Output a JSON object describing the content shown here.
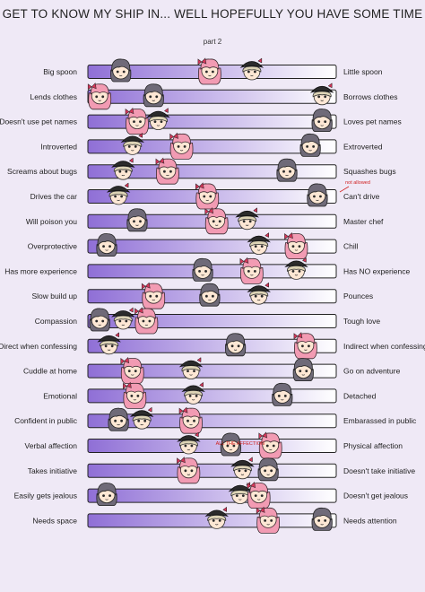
{
  "header": {
    "title": "GET TO KNOW MY SHIP IN... WELL HOPEFULLY YOU HAVE SOME TIME",
    "subtitle": "part 2"
  },
  "colors": {
    "background": "#efe9f6",
    "bar_light": "#ffffff",
    "bar_dark": "#8f6fd6",
    "bar_outline": "#222222",
    "pink_hair": "#f29bb3",
    "gray_hair": "#6f6a78",
    "blonde_hair": "#ddd3b5",
    "black_hat": "#2b2b2b",
    "skin": "#fde7d4",
    "note_red": "#d02020"
  },
  "characters": [
    "pink-haired-character",
    "gray-haired-character",
    "blonde-hat-character"
  ],
  "rows": [
    {
      "left": "Big spoon",
      "right": "Little spoon",
      "placements": {
        "gray": 0.11,
        "pink": 0.49,
        "blonde": 0.67
      }
    },
    {
      "left": "Lends clothes",
      "right": "Borrows clothes",
      "placements": {
        "pink": 0.02,
        "gray": 0.25,
        "blonde": 0.97
      }
    },
    {
      "left": "Doesn't use pet names",
      "right": "Loves pet names",
      "placements": {
        "pink": 0.18,
        "blonde": 0.27,
        "gray": 0.97
      }
    },
    {
      "left": "Introverted",
      "right": "Extroverted",
      "placements": {
        "blonde": 0.16,
        "pink": 0.37,
        "gray": 0.92
      }
    },
    {
      "left": "Screams about bugs",
      "right": "Squashes bugs",
      "placements": {
        "blonde": 0.12,
        "pink": 0.31,
        "gray": 0.82
      }
    },
    {
      "left": "Drives the car",
      "right": "Can't drive",
      "placements": {
        "blonde": 0.1,
        "pink": 0.48,
        "gray": 0.95
      },
      "note": "not allowed"
    },
    {
      "left": "Will poison you",
      "right": "Master chef",
      "placements": {
        "gray": 0.18,
        "pink": 0.52,
        "blonde": 0.65
      }
    },
    {
      "left": "Overprotective",
      "right": "Chill",
      "placements": {
        "gray": 0.05,
        "blonde": 0.7,
        "pink": 0.86
      }
    },
    {
      "left": "Has more experience",
      "right": "Has NO experience",
      "placements": {
        "gray": 0.46,
        "pink": 0.67,
        "blonde": 0.86
      }
    },
    {
      "left": "Slow build up",
      "right": "Pounces",
      "placements": {
        "pink": 0.25,
        "gray": 0.49,
        "blonde": 0.7
      }
    },
    {
      "left": "Compassion",
      "right": "Tough love",
      "placements": {
        "gray": 0.02,
        "blonde": 0.12,
        "pink": 0.22
      }
    },
    {
      "left": "Direct when confessing",
      "right": "Indirect when confessing",
      "placements": {
        "blonde": 0.06,
        "gray": 0.6,
        "pink": 0.9
      }
    },
    {
      "left": "Cuddle at home",
      "right": "Go on adventure",
      "placements": {
        "pink": 0.16,
        "blonde": 0.41,
        "gray": 0.89
      }
    },
    {
      "left": "Emotional",
      "right": "Detached",
      "placements": {
        "pink": 0.17,
        "blonde": 0.42,
        "gray": 0.8
      }
    },
    {
      "left": "Confident in public",
      "right": "Embarassed in public",
      "placements": {
        "gray": 0.1,
        "blonde": 0.2,
        "pink": 0.41
      }
    },
    {
      "left": "Verbal affection",
      "right": "Physical affection",
      "placements": {
        "blonde": 0.4,
        "gray": 0.58,
        "pink": 0.75
      },
      "note": "ALL THE AFFECTION"
    },
    {
      "left": "Takes initiative",
      "right": "Doesn't take initiative",
      "placements": {
        "pink": 0.4,
        "blonde": 0.63,
        "gray": 0.74
      }
    },
    {
      "left": "Easily gets jealous",
      "right": "Doesn't get jealous",
      "placements": {
        "gray": 0.05,
        "blonde": 0.62,
        "pink": 0.7
      }
    },
    {
      "left": "Needs space",
      "right": "Needs attention",
      "placements": {
        "blonde": 0.52,
        "pink": 0.74,
        "gray": 0.97
      }
    }
  ]
}
